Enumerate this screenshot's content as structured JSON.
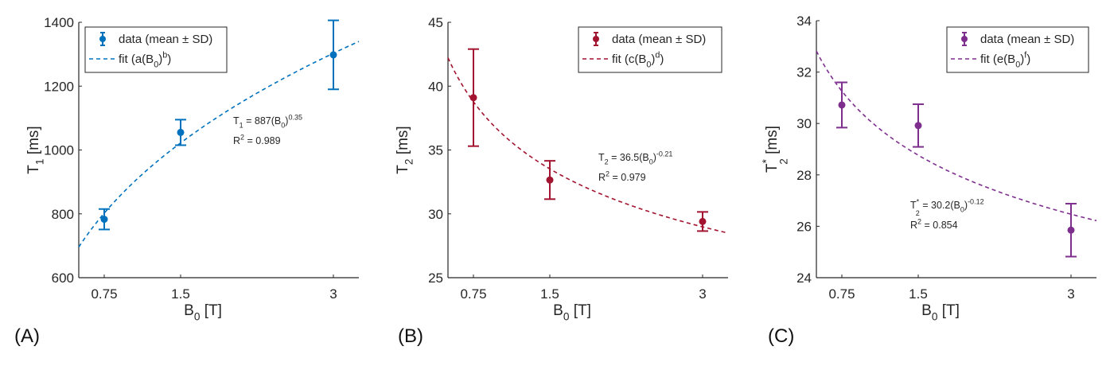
{
  "chart_data": [
    {
      "type": "scatter",
      "panel_label": "(A)",
      "color": "#0072BD",
      "x": [
        0.75,
        1.5,
        3
      ],
      "x_ticks": [
        "0.75",
        "1.5",
        "3"
      ],
      "xlim": [
        0.5,
        3.25
      ],
      "xlabel": [
        {
          "t": "B"
        },
        {
          "t": "0",
          "s": "sub"
        },
        {
          "t": " [T]"
        }
      ],
      "ylabel": [
        {
          "t": "T"
        },
        {
          "t": "1",
          "s": "sub"
        },
        {
          "t": " [ms]"
        }
      ],
      "ylim": [
        600,
        1400
      ],
      "y_ticks": [
        600,
        800,
        1000,
        1200,
        1400
      ],
      "series": [
        {
          "name": "data (mean ± SD)",
          "mean": [
            783,
            1055,
            1298
          ],
          "sd": [
            32,
            40,
            108
          ]
        },
        {
          "name": "fit (a(B0)^b)",
          "label": [
            {
              "t": "fit (a(B"
            },
            {
              "t": "0",
              "s": "sub"
            },
            {
              "t": ")"
            },
            {
              "t": "b",
              "s": "sup"
            },
            {
              "t": ")"
            }
          ],
          "a": 887,
          "b": 0.35
        }
      ],
      "legend_data_label": "data (mean ± SD)",
      "legend_placement": "top-left",
      "annotation": {
        "equation": [
          {
            "t": "T"
          },
          {
            "t": "1",
            "s": "sub"
          },
          {
            "t": " = 887(B"
          },
          {
            "t": "0",
            "s": "sub"
          },
          {
            "t": ")"
          },
          {
            "t": "0.35",
            "s": "sup"
          }
        ],
        "r2": [
          {
            "t": "R"
          },
          {
            "t": "2",
            "s": "sup"
          },
          {
            "t": " = 0.989"
          }
        ]
      }
    },
    {
      "type": "scatter",
      "panel_label": "(B)",
      "color": "#A2142F",
      "x": [
        0.75,
        1.5,
        3
      ],
      "x_ticks": [
        "0.75",
        "1.5",
        "3"
      ],
      "xlim": [
        0.5,
        3.25
      ],
      "xlabel": [
        {
          "t": "B"
        },
        {
          "t": "0",
          "s": "sub"
        },
        {
          "t": " [T]"
        }
      ],
      "ylabel": [
        {
          "t": "T"
        },
        {
          "t": "2",
          "s": "sub"
        },
        {
          "t": " [ms]"
        }
      ],
      "ylim": [
        25,
        45
      ],
      "y_ticks": [
        25,
        30,
        35,
        40,
        45
      ],
      "series": [
        {
          "name": "data (mean ± SD)",
          "mean": [
            39.1,
            32.65,
            29.4
          ],
          "sd": [
            3.8,
            1.5,
            0.75
          ]
        },
        {
          "name": "fit (c(B0)^d)",
          "label": [
            {
              "t": "fit (c(B"
            },
            {
              "t": "0",
              "s": "sub"
            },
            {
              "t": ")"
            },
            {
              "t": "d",
              "s": "sup"
            },
            {
              "t": ")"
            }
          ],
          "a": 36.5,
          "b": -0.21
        }
      ],
      "legend_data_label": "data (mean ± SD)",
      "legend_placement": "top-right",
      "annotation": {
        "equation": [
          {
            "t": "T"
          },
          {
            "t": "2",
            "s": "sub"
          },
          {
            "t": " = 36.5(B"
          },
          {
            "t": "0",
            "s": "sub"
          },
          {
            "t": ")"
          },
          {
            "t": "-0.21",
            "s": "sup"
          }
        ],
        "r2": [
          {
            "t": "R"
          },
          {
            "t": "2",
            "s": "sup"
          },
          {
            "t": " = 0.979"
          }
        ]
      }
    },
    {
      "type": "scatter",
      "panel_label": "(C)",
      "color": "#7E2F8E",
      "x": [
        0.75,
        1.5,
        3
      ],
      "x_ticks": [
        "0.75",
        "1.5",
        "3"
      ],
      "xlim": [
        0.5,
        3.25
      ],
      "xlabel": [
        {
          "t": "B"
        },
        {
          "t": "0",
          "s": "sub"
        },
        {
          "t": " [T]"
        }
      ],
      "ylabel": [
        {
          "t": "T"
        },
        {
          "t": "*",
          "s": "sup"
        },
        {
          "t": "2",
          "s": "sub2"
        },
        {
          "t": " [ms]"
        }
      ],
      "ylim": [
        24,
        34
      ],
      "y_ticks": [
        24,
        26,
        28,
        30,
        32,
        34
      ],
      "series": [
        {
          "name": "data (mean ± SD)",
          "mean": [
            30.72,
            29.92,
            25.85
          ],
          "sd": [
            0.88,
            0.83,
            1.03
          ]
        },
        {
          "name": "fit (e(B0)^f)",
          "label": [
            {
              "t": "fit (e(B"
            },
            {
              "t": "0",
              "s": "sub"
            },
            {
              "t": ")"
            },
            {
              "t": "f",
              "s": "sup"
            },
            {
              "t": ")"
            }
          ],
          "a": 30.2,
          "b": -0.12
        }
      ],
      "legend_data_label": "data (mean ± SD)",
      "legend_placement": "top-right",
      "annotation": {
        "equation": [
          {
            "t": "T"
          },
          {
            "t": "*",
            "s": "sup"
          },
          {
            "t": "2",
            "s": "sub2"
          },
          {
            "t": " = 30.2(B"
          },
          {
            "t": "0",
            "s": "sub"
          },
          {
            "t": ")"
          },
          {
            "t": "-0.12",
            "s": "sup"
          }
        ],
        "r2": [
          {
            "t": "R"
          },
          {
            "t": "2",
            "s": "sup"
          },
          {
            "t": " = 0.854"
          }
        ]
      }
    }
  ]
}
